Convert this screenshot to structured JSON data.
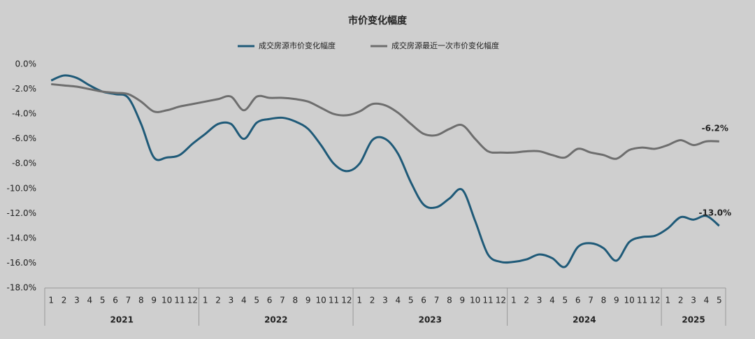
{
  "chart_data": {
    "type": "line",
    "title": "市价变化幅度",
    "categories": [
      "1",
      "2",
      "3",
      "4",
      "5",
      "6",
      "7",
      "8",
      "9",
      "10",
      "11",
      "12",
      "1",
      "2",
      "3",
      "4",
      "5",
      "6",
      "7",
      "8",
      "9",
      "10",
      "11",
      "12",
      "1",
      "2",
      "3",
      "4",
      "5",
      "6",
      "7",
      "8",
      "9",
      "10",
      "11",
      "12",
      "1",
      "2",
      "3",
      "4",
      "5",
      "6",
      "7",
      "8",
      "9",
      "10",
      "11",
      "12",
      "1",
      "2",
      "3",
      "4",
      "5"
    ],
    "year_groups": [
      "2021",
      "2022",
      "2023",
      "2024",
      "2025"
    ],
    "series": [
      {
        "name": "成交房源市价变化幅度",
        "color": "#1f5a78",
        "values": [
          -1.3,
          -0.9,
          -1.1,
          -1.7,
          -2.2,
          -2.4,
          -2.7,
          -4.8,
          -7.5,
          -7.5,
          -7.3,
          -6.4,
          -5.6,
          -4.8,
          -4.8,
          -6.0,
          -4.7,
          -4.4,
          -4.3,
          -4.6,
          -5.2,
          -6.5,
          -8.0,
          -8.6,
          -8.0,
          -6.1,
          -6.0,
          -7.2,
          -9.5,
          -11.3,
          -11.5,
          -10.8,
          -10.1,
          -12.6,
          -15.3,
          -15.9,
          -15.9,
          -15.7,
          -15.3,
          -15.6,
          -16.3,
          -14.7,
          -14.4,
          -14.8,
          -15.8,
          -14.3,
          -13.9,
          -13.8,
          -13.2,
          -12.3,
          -12.5,
          -12.2,
          -13.0
        ],
        "value_labels": [
          null,
          null,
          null,
          null,
          null,
          null,
          null,
          null,
          null,
          null,
          null,
          null,
          null,
          null,
          null,
          null,
          null,
          null,
          null,
          null,
          null,
          null,
          null,
          null,
          null,
          null,
          null,
          null,
          null,
          null,
          null,
          null,
          null,
          null,
          null,
          null,
          null,
          null,
          null,
          null,
          null,
          null,
          null,
          null,
          null,
          null,
          null,
          null,
          null,
          null,
          null,
          null,
          "-13.0%"
        ]
      },
      {
        "name": "成交房源最近一次市价变化幅度",
        "color": "#6e6e6e",
        "values": [
          -1.6,
          -1.7,
          -1.8,
          -2.0,
          -2.2,
          -2.3,
          -2.4,
          -3.0,
          -3.8,
          -3.7,
          -3.4,
          -3.2,
          -3.0,
          -2.8,
          -2.6,
          -3.7,
          -2.6,
          -2.7,
          -2.7,
          -2.8,
          -3.0,
          -3.5,
          -4.0,
          -4.1,
          -3.8,
          -3.2,
          -3.3,
          -3.9,
          -4.8,
          -5.6,
          -5.7,
          -5.2,
          -4.9,
          -6.0,
          -7.0,
          -7.1,
          -7.1,
          -7.0,
          -7.0,
          -7.3,
          -7.5,
          -6.8,
          -7.1,
          -7.3,
          -7.6,
          -6.9,
          -6.7,
          -6.8,
          -6.5,
          -6.1,
          -6.5,
          -6.2,
          -6.2
        ],
        "value_labels": [
          null,
          null,
          null,
          null,
          null,
          null,
          null,
          null,
          null,
          null,
          null,
          null,
          null,
          null,
          null,
          null,
          null,
          null,
          null,
          null,
          null,
          null,
          null,
          null,
          null,
          null,
          null,
          null,
          null,
          null,
          null,
          null,
          null,
          null,
          null,
          null,
          null,
          null,
          null,
          null,
          null,
          null,
          null,
          null,
          null,
          null,
          null,
          null,
          null,
          null,
          null,
          null,
          "-6.2%"
        ]
      }
    ],
    "ylim": [
      -18,
      0
    ],
    "yticks": [
      {
        "value": 0,
        "label": "0.0%"
      },
      {
        "value": -2,
        "label": "-2.0%"
      },
      {
        "value": -4,
        "label": "-4.0%"
      },
      {
        "value": -6,
        "label": "-6.0%"
      },
      {
        "value": -8,
        "label": "-8.0%"
      },
      {
        "value": -10,
        "label": "-10.0%"
      },
      {
        "value": -12,
        "label": "-12.0%"
      },
      {
        "value": -14,
        "label": "-14.0%"
      },
      {
        "value": -16,
        "label": "-16.0%"
      },
      {
        "value": -18,
        "label": "-18.0%"
      }
    ],
    "grid": false
  }
}
